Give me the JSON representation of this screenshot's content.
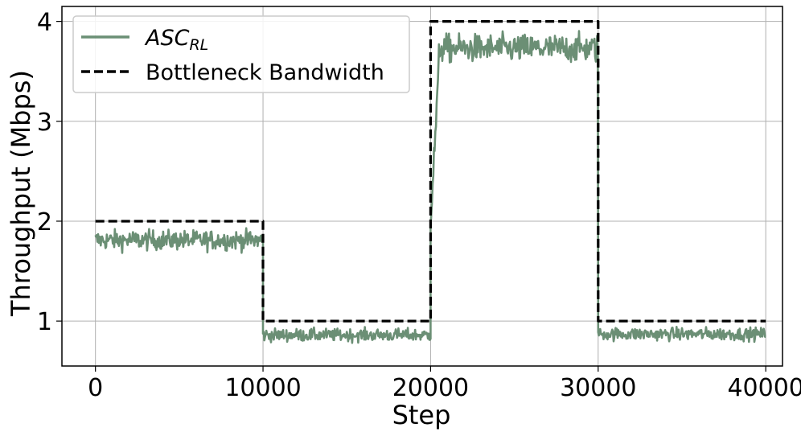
{
  "chart_data": {
    "type": "line",
    "title": "",
    "xlabel": "Step",
    "ylabel": "Throughput (Mbps)",
    "xlim": [
      -2000,
      41000
    ],
    "ylim": [
      0.55,
      4.15
    ],
    "xticks": [
      0,
      10000,
      20000,
      30000,
      40000
    ],
    "xtick_labels": [
      "0",
      "10000",
      "20000",
      "30000",
      "40000"
    ],
    "yticks": [
      1,
      2,
      3,
      4
    ],
    "ytick_labels": [
      "1",
      "2",
      "3",
      "4"
    ],
    "grid": true,
    "legend": {
      "placement": "top-left",
      "entries": [
        {
          "label_main": "ASC",
          "label_sub": "RL",
          "style": "solid",
          "color": "#6b8f75"
        },
        {
          "label_main": "Bottleneck Bandwidth",
          "label_sub": "",
          "style": "dashed",
          "color": "#000000"
        }
      ]
    },
    "series": [
      {
        "name": "ASC_RL",
        "style": "solid",
        "color": "#6b8f75",
        "noisy": true,
        "segments": [
          {
            "x_start": 0,
            "x_end": 10000,
            "mean": 1.81,
            "noise": 0.07
          },
          {
            "x_start": 10000,
            "x_end": 20000,
            "mean": 0.86,
            "noise": 0.045
          },
          {
            "x_start": 20000,
            "x_end": 20500,
            "mean_start": 2.0,
            "mean_end": 3.55,
            "noise": 0.1
          },
          {
            "x_start": 20500,
            "x_end": 30000,
            "mean": 3.73,
            "noise": 0.1
          },
          {
            "x_start": 30000,
            "x_end": 40000,
            "mean": 0.87,
            "noise": 0.045
          }
        ]
      },
      {
        "name": "Bottleneck Bandwidth",
        "style": "dashed",
        "color": "#000000",
        "x": [
          0,
          10000,
          10000,
          20000,
          20000,
          30000,
          30000,
          40000
        ],
        "y": [
          2,
          2,
          1,
          1,
          4,
          4,
          1,
          1
        ]
      }
    ]
  }
}
